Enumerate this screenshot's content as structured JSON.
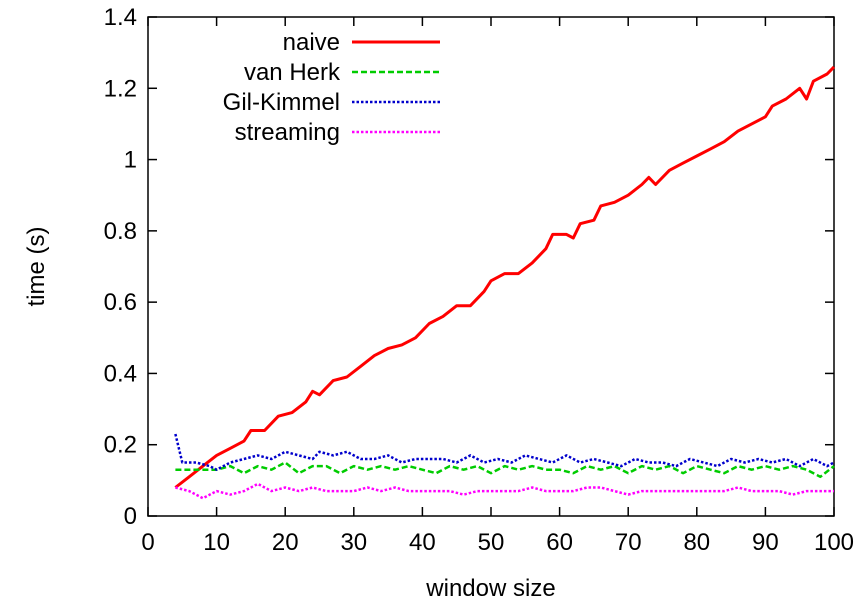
{
  "chart_data": {
    "type": "line",
    "xlabel": "window size",
    "ylabel": "time (s)",
    "xlim": [
      0,
      100
    ],
    "ylim": [
      0,
      1.4
    ],
    "xticks": [
      0,
      10,
      20,
      30,
      40,
      50,
      60,
      70,
      80,
      90,
      100
    ],
    "yticks": [
      0,
      0.2,
      0.4,
      0.6,
      0.8,
      1,
      1.2,
      1.4
    ],
    "xtick_labels": [
      "0",
      "10",
      "20",
      "30",
      "40",
      "50",
      "60",
      "70",
      "80",
      "90",
      "100"
    ],
    "ytick_labels": [
      "0",
      "0.2",
      "0.4",
      "0.6",
      "0.8",
      "1",
      "1.2",
      "1.4"
    ],
    "grid": false,
    "legend_position": "top-left",
    "series": [
      {
        "name": "naive",
        "color": "#ff0000",
        "style": "solid",
        "points": [
          [
            4,
            0.08
          ],
          [
            6,
            0.11
          ],
          [
            8,
            0.14
          ],
          [
            10,
            0.17
          ],
          [
            12,
            0.19
          ],
          [
            14,
            0.21
          ],
          [
            15,
            0.24
          ],
          [
            17,
            0.24
          ],
          [
            19,
            0.28
          ],
          [
            21,
            0.29
          ],
          [
            23,
            0.32
          ],
          [
            24,
            0.35
          ],
          [
            25,
            0.34
          ],
          [
            27,
            0.38
          ],
          [
            29,
            0.39
          ],
          [
            31,
            0.42
          ],
          [
            33,
            0.45
          ],
          [
            35,
            0.47
          ],
          [
            37,
            0.48
          ],
          [
            39,
            0.5
          ],
          [
            41,
            0.54
          ],
          [
            43,
            0.56
          ],
          [
            45,
            0.59
          ],
          [
            47,
            0.59
          ],
          [
            49,
            0.63
          ],
          [
            50,
            0.66
          ],
          [
            52,
            0.68
          ],
          [
            54,
            0.68
          ],
          [
            56,
            0.71
          ],
          [
            58,
            0.75
          ],
          [
            59,
            0.79
          ],
          [
            61,
            0.79
          ],
          [
            62,
            0.78
          ],
          [
            63,
            0.82
          ],
          [
            65,
            0.83
          ],
          [
            66,
            0.87
          ],
          [
            68,
            0.88
          ],
          [
            70,
            0.9
          ],
          [
            72,
            0.93
          ],
          [
            73,
            0.95
          ],
          [
            74,
            0.93
          ],
          [
            76,
            0.97
          ],
          [
            78,
            0.99
          ],
          [
            80,
            1.01
          ],
          [
            82,
            1.03
          ],
          [
            84,
            1.05
          ],
          [
            86,
            1.08
          ],
          [
            88,
            1.1
          ],
          [
            90,
            1.12
          ],
          [
            91,
            1.15
          ],
          [
            93,
            1.17
          ],
          [
            95,
            1.2
          ],
          [
            96,
            1.17
          ],
          [
            97,
            1.22
          ],
          [
            99,
            1.24
          ],
          [
            100,
            1.26
          ]
        ]
      },
      {
        "name": "van Herk",
        "color": "#00cc00",
        "style": "dashed",
        "points": [
          [
            4,
            0.13
          ],
          [
            8,
            0.13
          ],
          [
            10,
            0.13
          ],
          [
            12,
            0.14
          ],
          [
            14,
            0.12
          ],
          [
            16,
            0.14
          ],
          [
            18,
            0.13
          ],
          [
            20,
            0.15
          ],
          [
            22,
            0.12
          ],
          [
            24,
            0.14
          ],
          [
            26,
            0.14
          ],
          [
            28,
            0.12
          ],
          [
            30,
            0.14
          ],
          [
            32,
            0.13
          ],
          [
            34,
            0.14
          ],
          [
            36,
            0.13
          ],
          [
            38,
            0.14
          ],
          [
            40,
            0.13
          ],
          [
            42,
            0.12
          ],
          [
            44,
            0.14
          ],
          [
            46,
            0.13
          ],
          [
            48,
            0.14
          ],
          [
            50,
            0.12
          ],
          [
            52,
            0.14
          ],
          [
            54,
            0.13
          ],
          [
            56,
            0.14
          ],
          [
            58,
            0.13
          ],
          [
            60,
            0.13
          ],
          [
            62,
            0.12
          ],
          [
            64,
            0.14
          ],
          [
            66,
            0.13
          ],
          [
            68,
            0.14
          ],
          [
            70,
            0.12
          ],
          [
            72,
            0.14
          ],
          [
            74,
            0.13
          ],
          [
            76,
            0.14
          ],
          [
            78,
            0.12
          ],
          [
            80,
            0.14
          ],
          [
            82,
            0.13
          ],
          [
            84,
            0.12
          ],
          [
            86,
            0.14
          ],
          [
            88,
            0.13
          ],
          [
            90,
            0.14
          ],
          [
            92,
            0.13
          ],
          [
            94,
            0.14
          ],
          [
            96,
            0.13
          ],
          [
            98,
            0.11
          ],
          [
            100,
            0.14
          ]
        ]
      },
      {
        "name": "Gil-Kimmel",
        "color": "#0000cc",
        "style": "dotted",
        "points": [
          [
            4,
            0.23
          ],
          [
            5,
            0.15
          ],
          [
            7,
            0.15
          ],
          [
            9,
            0.14
          ],
          [
            10,
            0.13
          ],
          [
            12,
            0.15
          ],
          [
            14,
            0.16
          ],
          [
            16,
            0.17
          ],
          [
            18,
            0.16
          ],
          [
            20,
            0.18
          ],
          [
            22,
            0.17
          ],
          [
            24,
            0.16
          ],
          [
            25,
            0.18
          ],
          [
            27,
            0.17
          ],
          [
            29,
            0.18
          ],
          [
            31,
            0.16
          ],
          [
            33,
            0.16
          ],
          [
            35,
            0.17
          ],
          [
            37,
            0.15
          ],
          [
            39,
            0.16
          ],
          [
            41,
            0.16
          ],
          [
            43,
            0.16
          ],
          [
            45,
            0.15
          ],
          [
            47,
            0.17
          ],
          [
            49,
            0.15
          ],
          [
            51,
            0.16
          ],
          [
            53,
            0.15
          ],
          [
            55,
            0.17
          ],
          [
            57,
            0.16
          ],
          [
            59,
            0.15
          ],
          [
            61,
            0.17
          ],
          [
            63,
            0.15
          ],
          [
            65,
            0.16
          ],
          [
            67,
            0.15
          ],
          [
            69,
            0.14
          ],
          [
            71,
            0.16
          ],
          [
            73,
            0.15
          ],
          [
            75,
            0.15
          ],
          [
            77,
            0.14
          ],
          [
            79,
            0.16
          ],
          [
            81,
            0.15
          ],
          [
            83,
            0.14
          ],
          [
            85,
            0.16
          ],
          [
            87,
            0.15
          ],
          [
            89,
            0.16
          ],
          [
            91,
            0.15
          ],
          [
            93,
            0.16
          ],
          [
            95,
            0.14
          ],
          [
            97,
            0.16
          ],
          [
            99,
            0.14
          ],
          [
            100,
            0.15
          ]
        ]
      },
      {
        "name": "streaming",
        "color": "#ff00ff",
        "style": "dotted",
        "points": [
          [
            4,
            0.08
          ],
          [
            6,
            0.07
          ],
          [
            8,
            0.05
          ],
          [
            10,
            0.07
          ],
          [
            12,
            0.06
          ],
          [
            14,
            0.07
          ],
          [
            16,
            0.09
          ],
          [
            18,
            0.07
          ],
          [
            20,
            0.08
          ],
          [
            22,
            0.07
          ],
          [
            24,
            0.08
          ],
          [
            26,
            0.07
          ],
          [
            28,
            0.07
          ],
          [
            30,
            0.07
          ],
          [
            32,
            0.08
          ],
          [
            34,
            0.07
          ],
          [
            36,
            0.08
          ],
          [
            38,
            0.07
          ],
          [
            40,
            0.07
          ],
          [
            42,
            0.07
          ],
          [
            44,
            0.07
          ],
          [
            46,
            0.06
          ],
          [
            48,
            0.07
          ],
          [
            50,
            0.07
          ],
          [
            52,
            0.07
          ],
          [
            54,
            0.07
          ],
          [
            56,
            0.08
          ],
          [
            58,
            0.07
          ],
          [
            60,
            0.07
          ],
          [
            62,
            0.07
          ],
          [
            64,
            0.08
          ],
          [
            66,
            0.08
          ],
          [
            68,
            0.07
          ],
          [
            70,
            0.06
          ],
          [
            72,
            0.07
          ],
          [
            74,
            0.07
          ],
          [
            76,
            0.07
          ],
          [
            78,
            0.07
          ],
          [
            80,
            0.07
          ],
          [
            82,
            0.07
          ],
          [
            84,
            0.07
          ],
          [
            86,
            0.08
          ],
          [
            88,
            0.07
          ],
          [
            90,
            0.07
          ],
          [
            92,
            0.07
          ],
          [
            94,
            0.06
          ],
          [
            96,
            0.07
          ],
          [
            98,
            0.07
          ],
          [
            100,
            0.07
          ]
        ]
      }
    ]
  }
}
